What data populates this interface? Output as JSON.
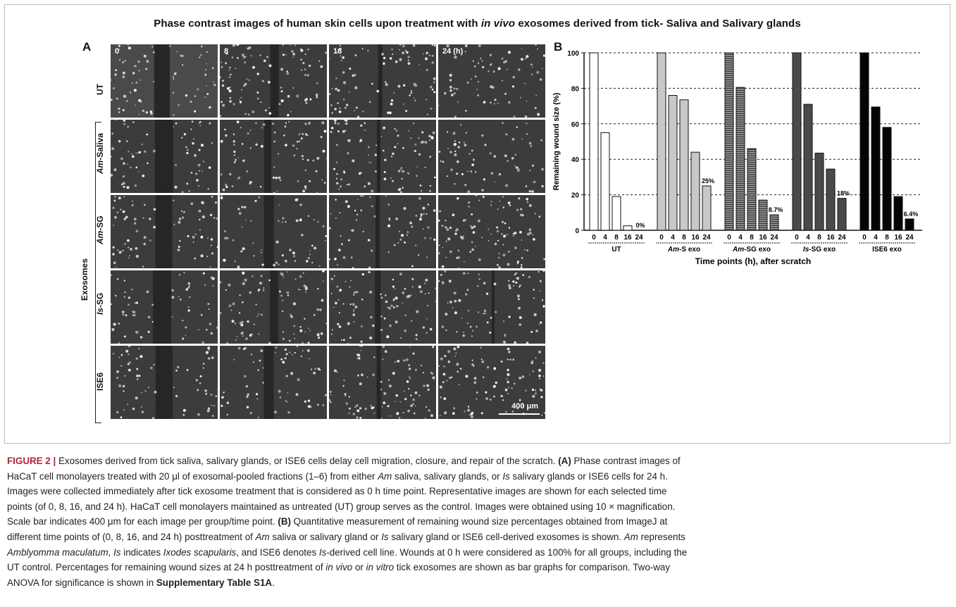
{
  "figure": {
    "title_part1": "Phase contrast images of human skin cells upon treatment with ",
    "title_italic": "in vivo",
    "title_part2": " exosomes derived from tick- Saliva and Salivary glands",
    "panel_a_label": "A",
    "panel_b_label": "B",
    "timepoints": [
      "0",
      "8",
      "16",
      "24 (h)"
    ],
    "rows": [
      {
        "italic": "",
        "plain": "UT"
      },
      {
        "italic": "Am",
        "plain": "-Saliva"
      },
      {
        "italic": "Am",
        "plain": "-SG"
      },
      {
        "italic": "Is",
        "plain": "-SG"
      },
      {
        "italic": "",
        "plain": "ISE6"
      }
    ],
    "group_label": "Exosomes",
    "scale_bar_label": "400 μm"
  },
  "chart_data": {
    "type": "bar",
    "ylabel": "Remaining wound size (%)",
    "xlabel": "Time points (h), after scratch",
    "ylim": [
      0,
      100
    ],
    "yticks": [
      0,
      20,
      40,
      60,
      80,
      100
    ],
    "grid": "horizontal dashed",
    "categories": [
      "0",
      "4",
      "8",
      "16",
      "24"
    ],
    "groups": [
      {
        "label_italic": "",
        "label_plain": "UT",
        "color": "#ffffff",
        "pattern": "none",
        "values": [
          100,
          55,
          19,
          2.5,
          0
        ],
        "annotation": "0%"
      },
      {
        "label_italic": "Am",
        "label_plain": "-S exo",
        "color": "#c8c8c8",
        "pattern": "none",
        "values": [
          100,
          76,
          73.5,
          44,
          25
        ],
        "annotation": "25%"
      },
      {
        "label_italic": "Am",
        "label_plain": "-SG exo",
        "color": "#6e6e6e",
        "pattern": "hstripe",
        "values": [
          100,
          80.5,
          46,
          17,
          8.7
        ],
        "annotation": "8.7%"
      },
      {
        "label_italic": "Is",
        "label_plain": "-SG exo",
        "color": "#4a4a4a",
        "pattern": "none",
        "values": [
          100,
          71,
          43.5,
          34.5,
          18
        ],
        "annotation": "18%"
      },
      {
        "label_italic": "",
        "label_plain": "ISE6 exo",
        "color": "#050505",
        "pattern": "none",
        "values": [
          100,
          69.5,
          58,
          19,
          6.4
        ],
        "annotation": "6.4%"
      }
    ]
  },
  "caption": {
    "figure_label": "FIGURE 2 |",
    "line1": " Exosomes derived from tick saliva, salivary glands, or ISE6 cells delay cell migration, closure, and repair of the scratch. ",
    "line1_a": "(A)",
    "line1_end": " Phase contrast images of",
    "line2_a": "HaCaT cell monolayers treated with 20 μl of exosomal-pooled fractions (1–6) from either ",
    "line2_am": "Am",
    "line2_b": " saliva, salivary glands, or ",
    "line2_is": "Is",
    "line2_c": " salivary glands or ISE6 cells for 24 h.",
    "line3": "Images were collected immediately after tick exosome treatment that is considered as 0 h time point. Representative images are shown for each selected time",
    "line4": "points (of 0, 8, 16, and 24 h). HaCaT cell monolayers maintained as untreated (UT) group serves as the control. Images were obtained using 10 × magnification.",
    "line5_a": "Scale bar indicates 400 μm for each image per group/time point. ",
    "line5_b": "(B)",
    "line5_c": " Quantitative measurement of remaining wound size percentages obtained from ImageJ at",
    "line6_a": "different time points of (0, 8, 16, and 24 h) posttreatment of ",
    "line6_am": "Am",
    "line6_b": " saliva or salivary gland or ",
    "line6_is": "Is",
    "line6_c": " salivary gland or ISE6 cell-derived exosomes is shown. ",
    "line6_am2": "Am",
    "line6_d": " represents",
    "line7_am": "Amblyomma maculatum",
    "line7_a": ", ",
    "line7_is": "Is",
    "line7_b": " indicates ",
    "line7_ix": "Ixodes scapularis",
    "line7_c": ", and ISE6 denotes ",
    "line7_is2": "Is",
    "line7_d": "-derived cell line. Wounds at 0 h were considered as 100% for all groups, including the",
    "line8_a": "UT control. Percentages for remaining wound sizes at 24 h posttreatment of ",
    "line8_iv": "in vivo",
    "line8_b": " or ",
    "line8_iv2": "in vitro",
    "line8_c": " tick exosomes are shown as bar graphs for comparison. Two-way",
    "line9_a": "ANOVA for significance is shown in ",
    "line9_b": "Supplementary Table S1A",
    "line9_c": "."
  }
}
